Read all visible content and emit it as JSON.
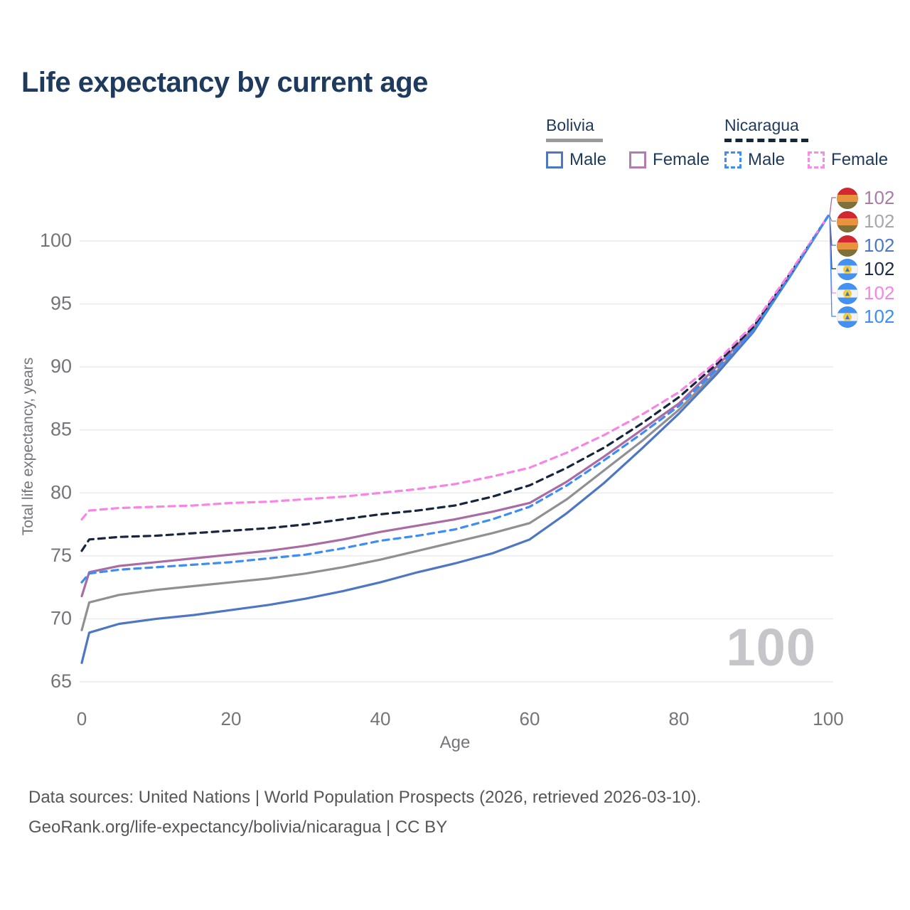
{
  "title": "Life expectancy by current age",
  "legend": {
    "bolivia": {
      "label": "Bolivia",
      "male": "Male",
      "female": "Female"
    },
    "nicaragua": {
      "label": "Nicaragua",
      "male": "Male",
      "female": "Female"
    }
  },
  "watermark": "100",
  "footer": {
    "line1": "Data sources: United Nations | World Population Prospects (2026, retrieved 2026-03-10).",
    "line2": "GeoRank.org/life-expectancy/bolivia/nicaragua | CC BY"
  },
  "colors": {
    "title_text": "#1e3a5c",
    "axis_text": "#74747a",
    "gridline": "#eaeaec",
    "watermark": "#c5c5ca",
    "bolivia_header_bar": "#9b9b9b",
    "nicaragua_header_bar": "#16263c"
  },
  "chart_data": {
    "type": "line",
    "title": "Life expectancy by current age",
    "xlabel": "Age",
    "ylabel": "Total life expectancy, years",
    "xlim": [
      0,
      100
    ],
    "ylim": [
      65,
      103
    ],
    "x_ticks": [
      0,
      20,
      40,
      60,
      80,
      100
    ],
    "y_ticks": [
      65,
      70,
      75,
      80,
      85,
      90,
      95,
      100
    ],
    "grid": true,
    "legend_position": "top-right",
    "ages": [
      0,
      1,
      5,
      10,
      15,
      20,
      25,
      30,
      35,
      40,
      45,
      50,
      55,
      60,
      65,
      70,
      75,
      80,
      85,
      90,
      95,
      100
    ],
    "series": [
      {
        "name": "Bolivia Female",
        "country": "Bolivia",
        "sex": "Female",
        "style": "solid",
        "color": "#a96ba4",
        "label_color": "#a87ba8",
        "flag": "bolivia",
        "end_label": "102",
        "values": [
          71.8,
          73.7,
          74.2,
          74.5,
          74.8,
          75.1,
          75.4,
          75.8,
          76.3,
          76.9,
          77.4,
          77.9,
          78.5,
          79.2,
          80.9,
          82.9,
          85.0,
          87.1,
          90.0,
          93.1,
          97.4,
          102
        ]
      },
      {
        "name": "Bolivia Both sexes",
        "country": "Bolivia",
        "sex": "Both",
        "style": "solid",
        "color": "#8f8f94",
        "label_color": "#a7a7ab",
        "flag": "bolivia",
        "end_label": "102",
        "values": [
          69.1,
          71.3,
          71.9,
          72.3,
          72.6,
          72.9,
          73.2,
          73.6,
          74.1,
          74.7,
          75.4,
          76.1,
          76.8,
          77.6,
          79.5,
          81.8,
          84.1,
          86.6,
          89.6,
          92.9,
          97.3,
          102
        ]
      },
      {
        "name": "Bolivia Male",
        "country": "Bolivia",
        "sex": "Male",
        "style": "solid",
        "color": "#4d77c4",
        "label_color": "#4d77c4",
        "flag": "bolivia",
        "end_label": "102",
        "values": [
          66.5,
          68.9,
          69.6,
          70.0,
          70.3,
          70.7,
          71.1,
          71.6,
          72.2,
          72.9,
          73.7,
          74.4,
          75.2,
          76.3,
          78.4,
          80.8,
          83.5,
          86.3,
          89.4,
          92.8,
          97.3,
          102
        ]
      },
      {
        "name": "Nicaragua Both sexes",
        "country": "Nicaragua",
        "sex": "Both",
        "style": "dashed",
        "color": "#16263c",
        "label_color": "#1b2b45",
        "flag": "nicaragua",
        "end_label": "102",
        "values": [
          75.4,
          76.3,
          76.5,
          76.6,
          76.8,
          77.0,
          77.2,
          77.5,
          77.9,
          78.3,
          78.6,
          79.0,
          79.7,
          80.6,
          82.0,
          83.6,
          85.5,
          87.6,
          90.2,
          93.2,
          97.5,
          102
        ]
      },
      {
        "name": "Nicaragua Female",
        "country": "Nicaragua",
        "sex": "Female",
        "style": "dashed",
        "color": "#f884e4",
        "label_color": "#f884e4",
        "flag": "nicaragua",
        "end_label": "102",
        "values": [
          77.9,
          78.6,
          78.8,
          78.9,
          79.0,
          79.2,
          79.3,
          79.5,
          79.7,
          80.0,
          80.3,
          80.7,
          81.3,
          82.0,
          83.2,
          84.6,
          86.2,
          88.0,
          90.4,
          93.4,
          97.6,
          102
        ]
      },
      {
        "name": "Nicaragua Male",
        "country": "Nicaragua",
        "sex": "Male",
        "style": "dashed",
        "color": "#3d8df5",
        "label_color": "#3d8df5",
        "flag": "nicaragua",
        "end_label": "102",
        "values": [
          72.9,
          73.6,
          73.9,
          74.1,
          74.3,
          74.5,
          74.8,
          75.1,
          75.6,
          76.2,
          76.6,
          77.1,
          77.9,
          78.9,
          80.6,
          82.6,
          84.7,
          86.9,
          89.8,
          92.9,
          97.3,
          102
        ]
      }
    ]
  }
}
